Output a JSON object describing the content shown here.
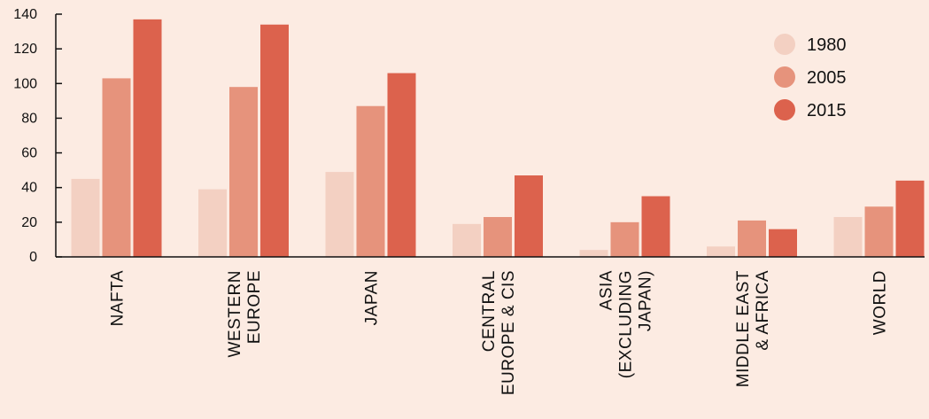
{
  "chart_data": {
    "type": "bar",
    "title": "",
    "xlabel": "",
    "ylabel": "",
    "ylim": [
      0,
      140
    ],
    "yticks": [
      0,
      20,
      40,
      60,
      80,
      100,
      120,
      140
    ],
    "grid": false,
    "legend_position": "top-right",
    "categories": [
      [
        "NAFTA"
      ],
      [
        "WESTERN",
        "EUROPE"
      ],
      [
        "JAPAN"
      ],
      [
        "CENTRAL",
        "EUROPE & CIS"
      ],
      [
        "ASIA",
        "(EXCLUDING",
        "JAPAN)"
      ],
      [
        "MIDDLE EAST",
        "& AFRICA"
      ],
      [
        "WORLD"
      ]
    ],
    "series": [
      {
        "name": "1980",
        "color": "#f3d0c2",
        "values": [
          45,
          39,
          49,
          19,
          4,
          6,
          23
        ]
      },
      {
        "name": "2005",
        "color": "#e6937c",
        "values": [
          103,
          98,
          87,
          23,
          20,
          21,
          29
        ]
      },
      {
        "name": "2015",
        "color": "#dc624d",
        "values": [
          137,
          134,
          106,
          47,
          35,
          16,
          44
        ]
      }
    ]
  }
}
